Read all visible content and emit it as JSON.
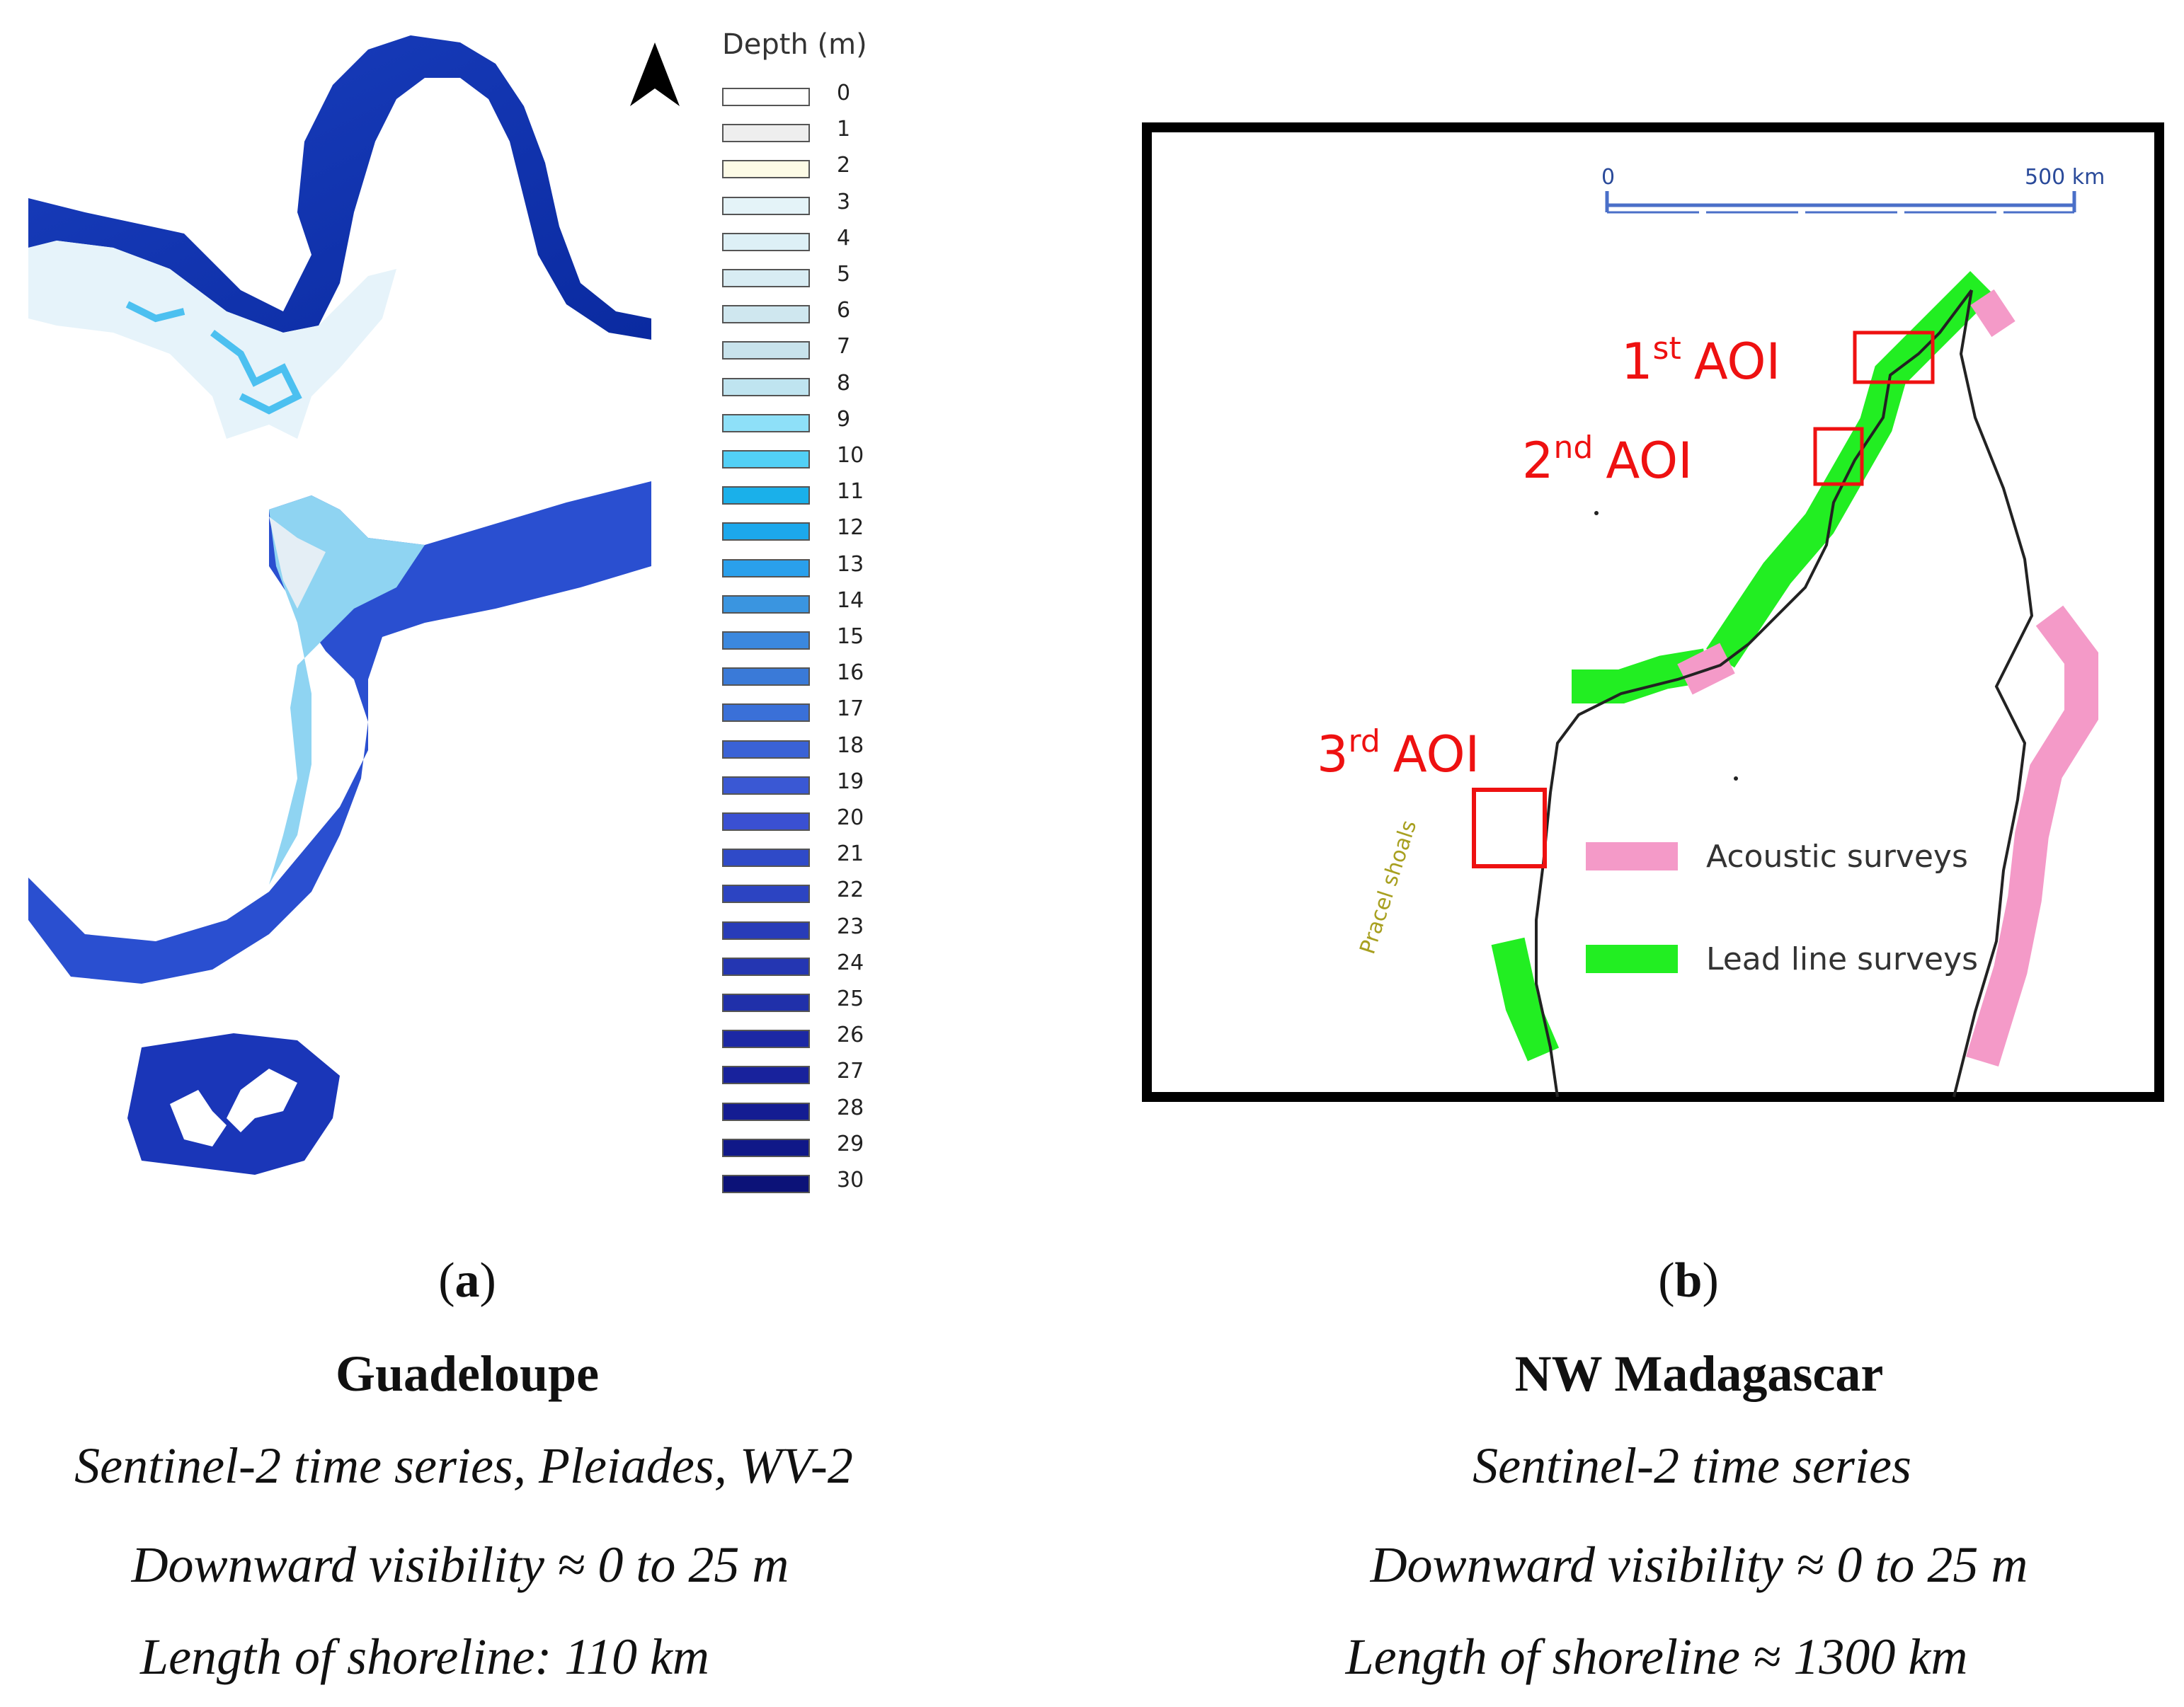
{
  "panel_a": {
    "north_arrow": "north-arrow-icon",
    "legend": {
      "title": "Depth (m)",
      "items": [
        {
          "label": "0",
          "color": "#ffffff"
        },
        {
          "label": "1",
          "color": "#eeeeee"
        },
        {
          "label": "2",
          "color": "#fdfbe6"
        },
        {
          "label": "3",
          "color": "#e4f3f8"
        },
        {
          "label": "4",
          "color": "#ddf0f6"
        },
        {
          "label": "5",
          "color": "#d8ecf3"
        },
        {
          "label": "6",
          "color": "#cfe7ef"
        },
        {
          "label": "7",
          "color": "#c8e3ec"
        },
        {
          "label": "8",
          "color": "#bfe4f0"
        },
        {
          "label": "9",
          "color": "#8ee0f8"
        },
        {
          "label": "10",
          "color": "#52d0f6"
        },
        {
          "label": "11",
          "color": "#1ab0ea"
        },
        {
          "label": "12",
          "color": "#1ca8ec"
        },
        {
          "label": "13",
          "color": "#2aa0ec"
        },
        {
          "label": "14",
          "color": "#3a95e0"
        },
        {
          "label": "15",
          "color": "#3b88de"
        },
        {
          "label": "16",
          "color": "#3a7ad8"
        },
        {
          "label": "17",
          "color": "#3a70d8"
        },
        {
          "label": "18",
          "color": "#3a62d6"
        },
        {
          "label": "19",
          "color": "#3a58d4"
        },
        {
          "label": "20",
          "color": "#3a50d2"
        },
        {
          "label": "21",
          "color": "#2f4ac8"
        },
        {
          "label": "22",
          "color": "#2c44c2"
        },
        {
          "label": "23",
          "color": "#283cb8"
        },
        {
          "label": "24",
          "color": "#2436b2"
        },
        {
          "label": "25",
          "color": "#2030aa"
        },
        {
          "label": "26",
          "color": "#1c28a4"
        },
        {
          "label": "27",
          "color": "#18229c"
        },
        {
          "label": "28",
          "color": "#141c92"
        },
        {
          "label": "29",
          "color": "#101888"
        },
        {
          "label": "30",
          "color": "#0c1278"
        }
      ]
    },
    "caption": {
      "letter": "a",
      "title": "Guadeloupe",
      "line1": "Sentinel-2 time series, Pleiades, WV-2",
      "line2": "Downward visibility ≈ 0 to 25 m",
      "line3": "Length of shoreline: 110 km"
    }
  },
  "panel_b": {
    "scale_bar": {
      "start": "0",
      "end": "500 km"
    },
    "aoi_labels": [
      {
        "ordinal": "1",
        "suffix": "st",
        "text": "AOI"
      },
      {
        "ordinal": "2",
        "suffix": "nd",
        "text": "AOI"
      },
      {
        "ordinal": "3",
        "suffix": "rd",
        "text": "AOI"
      }
    ],
    "place_label": "Pracel shoals",
    "legend": [
      {
        "label": "Acoustic surveys",
        "color": "#f49ac8"
      },
      {
        "label": "Lead line surveys",
        "color": "#22ee22"
      }
    ],
    "aoi_color": "#ee1111",
    "caption": {
      "letter": "b",
      "title": "NW Madagascar",
      "line1": "Sentinel-2 time series",
      "line2": "Downward visibility ≈ 0 to 25 m",
      "line3": "Length of shoreline ≈ 1300 km"
    }
  }
}
